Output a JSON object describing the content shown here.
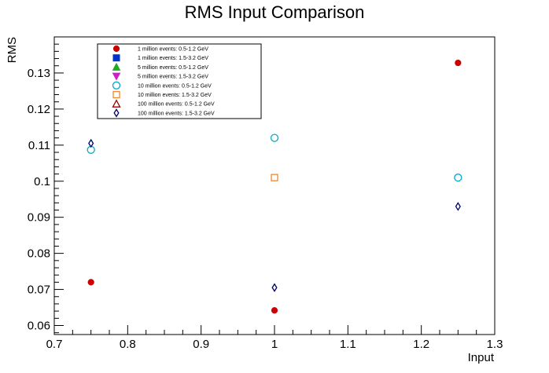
{
  "chart_data": {
    "type": "scatter",
    "title": "RMS Input Comparison",
    "xlabel": "Input",
    "ylabel": "RMS",
    "xlim": [
      0.7,
      1.3
    ],
    "ylim": [
      0.0575,
      0.14
    ],
    "xticks": [
      "0.7",
      "0.8",
      "0.9",
      "1",
      "1.1",
      "1.2",
      "1.3"
    ],
    "yticks": [
      "0.06",
      "0.07",
      "0.08",
      "0.09",
      "0.1",
      "0.11",
      "0.12",
      "0.13"
    ],
    "grid": false,
    "legend_position": "top-left",
    "series": [
      {
        "name": "1 million events: 0.5-1.2 GeV",
        "marker": "filled-circle",
        "color": "#cc0000",
        "points": [
          [
            0.75,
            0.072
          ],
          [
            1.0,
            0.0642
          ],
          [
            1.25,
            0.1328
          ]
        ]
      },
      {
        "name": "1 million events: 1.5-3.2 GeV",
        "marker": "filled-square",
        "color": "#0033cc",
        "points": []
      },
      {
        "name": "5 million events: 0.5-1.2 GeV",
        "marker": "filled-triangle-up",
        "color": "#22aa22",
        "points": []
      },
      {
        "name": "5 million events: 1.5-3.2 GeV",
        "marker": "filled-triangle-down",
        "color": "#cc22cc",
        "points": []
      },
      {
        "name": "10 million events: 0.5-1.2 GeV",
        "marker": "open-circle",
        "color": "#00aacc",
        "points": [
          [
            0.75,
            0.1087
          ],
          [
            1.0,
            0.112
          ],
          [
            1.25,
            0.101
          ]
        ]
      },
      {
        "name": "10 million events: 1.5-3.2 GeV",
        "marker": "open-square",
        "color": "#ee8833",
        "points": [
          [
            1.0,
            0.101
          ]
        ]
      },
      {
        "name": "100 million events: 0.5-1.2 GeV",
        "marker": "open-triangle-up",
        "color": "#990000",
        "points": []
      },
      {
        "name": "100 million events: 1.5-3.2 GeV",
        "marker": "open-diamond",
        "color": "#000066",
        "points": [
          [
            0.75,
            0.1105
          ],
          [
            1.0,
            0.0705
          ],
          [
            1.25,
            0.093
          ]
        ]
      }
    ]
  }
}
